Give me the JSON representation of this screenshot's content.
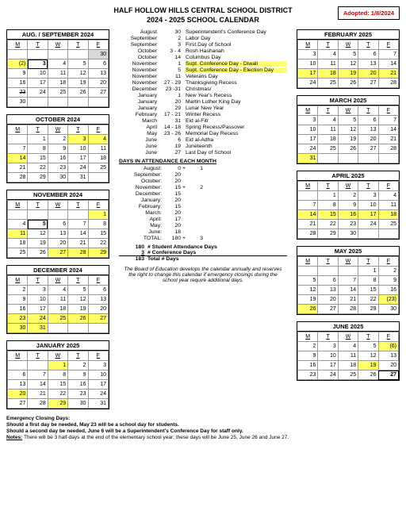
{
  "header": {
    "line1": "HALF HOLLOW HILLS CENTRAL SCHOOL DISTRICT",
    "line2": "2024 - 2025 SCHOOL CALENDAR",
    "adopted": "Adopted:  1/8/2024"
  },
  "dow": [
    "M",
    "T",
    "W",
    "T",
    "F"
  ],
  "calendars_left": [
    {
      "title": "AUG. / SEPTEMBER 2024",
      "rows": [
        [
          null,
          null,
          null,
          null,
          {
            "v": "30",
            "c": "sh"
          }
        ],
        [
          {
            "v": "(2)",
            "c": "hl"
          },
          {
            "v": "3",
            "c": "boxed"
          },
          {
            "v": "4"
          },
          {
            "v": "5"
          },
          {
            "v": "6"
          }
        ],
        [
          {
            "v": "9"
          },
          {
            "v": "10"
          },
          {
            "v": "11"
          },
          {
            "v": "12"
          },
          {
            "v": "13"
          }
        ],
        [
          {
            "v": "16"
          },
          {
            "v": "17"
          },
          {
            "v": "18"
          },
          {
            "v": "19"
          },
          {
            "v": "20"
          }
        ],
        [
          {
            "v": "23",
            "c": "strike"
          },
          {
            "v": "24"
          },
          {
            "v": "25"
          },
          {
            "v": "26"
          },
          {
            "v": "27"
          }
        ],
        [
          {
            "v": "30"
          },
          null,
          null,
          null,
          null
        ]
      ]
    },
    {
      "title": "OCTOBER 2024",
      "rows": [
        [
          null,
          {
            "v": "1"
          },
          {
            "v": "2"
          },
          {
            "v": "3",
            "c": "hl"
          },
          {
            "v": "4",
            "c": "hl"
          }
        ],
        [
          {
            "v": "7"
          },
          {
            "v": "8"
          },
          {
            "v": "9"
          },
          {
            "v": "10"
          },
          {
            "v": "11"
          }
        ],
        [
          {
            "v": "14",
            "c": "hl"
          },
          {
            "v": "15"
          },
          {
            "v": "16"
          },
          {
            "v": "17"
          },
          {
            "v": "18"
          }
        ],
        [
          {
            "v": "21"
          },
          {
            "v": "22"
          },
          {
            "v": "23"
          },
          {
            "v": "24"
          },
          {
            "v": "25"
          }
        ],
        [
          {
            "v": "28"
          },
          {
            "v": "29"
          },
          {
            "v": "30"
          },
          {
            "v": "31"
          },
          null
        ]
      ]
    },
    {
      "title": "NOVEMBER 2024",
      "rows": [
        [
          null,
          null,
          null,
          null,
          {
            "v": "1",
            "c": "hl"
          }
        ],
        [
          {
            "v": "4"
          },
          {
            "v": "5",
            "c": "boxed"
          },
          {
            "v": "6"
          },
          {
            "v": "7"
          },
          {
            "v": "8"
          }
        ],
        [
          {
            "v": "11",
            "c": "hl"
          },
          {
            "v": "12"
          },
          {
            "v": "13"
          },
          {
            "v": "14"
          },
          {
            "v": "15"
          }
        ],
        [
          {
            "v": "18"
          },
          {
            "v": "19"
          },
          {
            "v": "20"
          },
          {
            "v": "21"
          },
          {
            "v": "22"
          }
        ],
        [
          {
            "v": "25"
          },
          {
            "v": "26"
          },
          {
            "v": "27",
            "c": "hl"
          },
          {
            "v": "28",
            "c": "hl"
          },
          {
            "v": "29",
            "c": "hl"
          }
        ]
      ]
    },
    {
      "title": "DECEMBER 2024",
      "rows": [
        [
          {
            "v": "2"
          },
          {
            "v": "3"
          },
          {
            "v": "4"
          },
          {
            "v": "5"
          },
          {
            "v": "6"
          }
        ],
        [
          {
            "v": "9"
          },
          {
            "v": "10"
          },
          {
            "v": "11"
          },
          {
            "v": "12"
          },
          {
            "v": "13"
          }
        ],
        [
          {
            "v": "16"
          },
          {
            "v": "17"
          },
          {
            "v": "18"
          },
          {
            "v": "19"
          },
          {
            "v": "20"
          }
        ],
        [
          {
            "v": "23",
            "c": "hl"
          },
          {
            "v": "24",
            "c": "hl"
          },
          {
            "v": "25",
            "c": "hl"
          },
          {
            "v": "26",
            "c": "hl"
          },
          {
            "v": "27",
            "c": "hl"
          }
        ],
        [
          {
            "v": "30",
            "c": "hl"
          },
          {
            "v": "31",
            "c": "hl"
          },
          null,
          null,
          null
        ]
      ]
    },
    {
      "title": "JANUARY 2025",
      "rows": [
        [
          null,
          null,
          {
            "v": "1",
            "c": "hl"
          },
          {
            "v": "2"
          },
          {
            "v": "3"
          }
        ],
        [
          {
            "v": "6"
          },
          {
            "v": "7"
          },
          {
            "v": "8"
          },
          {
            "v": "9"
          },
          {
            "v": "10"
          }
        ],
        [
          {
            "v": "13"
          },
          {
            "v": "14"
          },
          {
            "v": "15"
          },
          {
            "v": "16"
          },
          {
            "v": "17"
          }
        ],
        [
          {
            "v": "20",
            "c": "hl"
          },
          {
            "v": "21"
          },
          {
            "v": "22"
          },
          {
            "v": "23"
          },
          {
            "v": "24"
          }
        ],
        [
          {
            "v": "27"
          },
          {
            "v": "28"
          },
          {
            "v": "29",
            "c": "hl"
          },
          {
            "v": "30"
          },
          {
            "v": "31"
          }
        ]
      ]
    }
  ],
  "calendars_right": [
    {
      "title": "FEBRUARY 2025",
      "rows": [
        [
          {
            "v": "3"
          },
          {
            "v": "4"
          },
          {
            "v": "5"
          },
          {
            "v": "6"
          },
          {
            "v": "7"
          }
        ],
        [
          {
            "v": "10"
          },
          {
            "v": "11"
          },
          {
            "v": "12"
          },
          {
            "v": "13"
          },
          {
            "v": "14"
          }
        ],
        [
          {
            "v": "17",
            "c": "hl"
          },
          {
            "v": "18",
            "c": "hl"
          },
          {
            "v": "19",
            "c": "hl"
          },
          {
            "v": "20",
            "c": "hl"
          },
          {
            "v": "21",
            "c": "hl"
          }
        ],
        [
          {
            "v": "24"
          },
          {
            "v": "25"
          },
          {
            "v": "26"
          },
          {
            "v": "27"
          },
          {
            "v": "28"
          }
        ]
      ]
    },
    {
      "title": "MARCH 2025",
      "rows": [
        [
          {
            "v": "3"
          },
          {
            "v": "4"
          },
          {
            "v": "5"
          },
          {
            "v": "6"
          },
          {
            "v": "7"
          }
        ],
        [
          {
            "v": "10"
          },
          {
            "v": "11"
          },
          {
            "v": "12"
          },
          {
            "v": "13"
          },
          {
            "v": "14"
          }
        ],
        [
          {
            "v": "17"
          },
          {
            "v": "18"
          },
          {
            "v": "19"
          },
          {
            "v": "20"
          },
          {
            "v": "21"
          }
        ],
        [
          {
            "v": "24"
          },
          {
            "v": "25"
          },
          {
            "v": "26"
          },
          {
            "v": "27"
          },
          {
            "v": "28"
          }
        ],
        [
          {
            "v": "31",
            "c": "hl"
          },
          null,
          null,
          null,
          null
        ]
      ]
    },
    {
      "title": "APRIL 2025",
      "rows": [
        [
          null,
          {
            "v": "1"
          },
          {
            "v": "2"
          },
          {
            "v": "3"
          },
          {
            "v": "4"
          }
        ],
        [
          {
            "v": "7"
          },
          {
            "v": "8"
          },
          {
            "v": "9"
          },
          {
            "v": "10"
          },
          {
            "v": "11"
          }
        ],
        [
          {
            "v": "14",
            "c": "hl"
          },
          {
            "v": "15",
            "c": "hl"
          },
          {
            "v": "16",
            "c": "hl"
          },
          {
            "v": "17",
            "c": "hl"
          },
          {
            "v": "18",
            "c": "hl"
          }
        ],
        [
          {
            "v": "21"
          },
          {
            "v": "22"
          },
          {
            "v": "23"
          },
          {
            "v": "24"
          },
          {
            "v": "25"
          }
        ],
        [
          {
            "v": "28"
          },
          {
            "v": "29"
          },
          {
            "v": "30"
          },
          null,
          null
        ]
      ]
    },
    {
      "title": "MAY 2025",
      "rows": [
        [
          null,
          null,
          null,
          {
            "v": "1"
          },
          {
            "v": "2"
          }
        ],
        [
          {
            "v": "5"
          },
          {
            "v": "6"
          },
          {
            "v": "7"
          },
          {
            "v": "8"
          },
          {
            "v": "9"
          }
        ],
        [
          {
            "v": "12"
          },
          {
            "v": "13"
          },
          {
            "v": "14"
          },
          {
            "v": "15"
          },
          {
            "v": "16"
          }
        ],
        [
          {
            "v": "19"
          },
          {
            "v": "20"
          },
          {
            "v": "21"
          },
          {
            "v": "22"
          },
          {
            "v": "(23)",
            "c": "hl"
          }
        ],
        [
          {
            "v": "26",
            "c": "hl"
          },
          {
            "v": "27"
          },
          {
            "v": "28"
          },
          {
            "v": "29"
          },
          {
            "v": "30"
          }
        ]
      ]
    },
    {
      "title": "JUNE 2025",
      "rows": [
        [
          {
            "v": "2"
          },
          {
            "v": "3"
          },
          {
            "v": "4"
          },
          {
            "v": "5"
          },
          {
            "v": "(6)",
            "c": "hl"
          }
        ],
        [
          {
            "v": "9"
          },
          {
            "v": "10"
          },
          {
            "v": "11"
          },
          {
            "v": "12"
          },
          {
            "v": "13"
          }
        ],
        [
          {
            "v": "16"
          },
          {
            "v": "17"
          },
          {
            "v": "18"
          },
          {
            "v": "19",
            "c": "hl"
          },
          {
            "v": "20"
          }
        ],
        [
          {
            "v": "23"
          },
          {
            "v": "24"
          },
          {
            "v": "25"
          },
          {
            "v": "26"
          },
          {
            "v": "27",
            "c": "boxed"
          }
        ]
      ]
    }
  ],
  "events": [
    {
      "m": "August",
      "d": "30",
      "t": "Superintendent's Conference Day"
    },
    {
      "m": "September",
      "d": "2",
      "t": "Labor Day"
    },
    {
      "m": "September",
      "d": "3",
      "t": "First Day of School"
    },
    {
      "m": "October",
      "d": "3 - 4",
      "t": "Rosh Hashanah"
    },
    {
      "m": "October",
      "d": "14",
      "t": "Columbus Day"
    },
    {
      "m": "November",
      "d": "1",
      "t": "Supt. Conference Day - Diwali",
      "hl": true
    },
    {
      "m": "November",
      "d": "5",
      "t": "Supt. Conference Day - Election Day",
      "hl": true
    },
    {
      "m": "November",
      "d": "11",
      "t": "Veterans Day"
    },
    {
      "m": "November",
      "d": "27 - 29",
      "t": "Thanksgiving Recess"
    },
    {
      "m": "December",
      "d": "23 -31",
      "t": "Christmas/"
    },
    {
      "m": "January",
      "d": "1",
      "t": "New Year's Recess"
    },
    {
      "m": "January",
      "d": "20",
      "t": "Martin Luther King Day"
    },
    {
      "m": "January",
      "d": "29",
      "t": "Lunar New Year"
    },
    {
      "m": "February",
      "d": "17 - 21",
      "t": "Winter Recess"
    },
    {
      "m": "March",
      "d": "31",
      "t": "Eid al-Fitr"
    },
    {
      "m": "April",
      "d": "14 - 18",
      "t": "Spring Recess/Passover"
    },
    {
      "m": "May",
      "d": "23 - 26",
      "t": "Memorial Day Recess"
    },
    {
      "m": "June",
      "d": "6",
      "t": "Eid al-Adha"
    },
    {
      "m": "June",
      "d": "19",
      "t": "Juneteenth"
    },
    {
      "m": "June",
      "d": "27",
      "t": "Last Day of School"
    }
  ],
  "att_title": "DAYS IN ATTENDANCE EACH MONTH",
  "attendance": [
    {
      "m": "August:",
      "v": "0",
      "p": "+",
      "e": "1"
    },
    {
      "m": "September:",
      "v": "20"
    },
    {
      "m": "October:",
      "v": "20"
    },
    {
      "m": "November:",
      "v": "15",
      "p": "+",
      "e": "2"
    },
    {
      "m": "December:",
      "v": "15"
    },
    {
      "m": "January:",
      "v": "20"
    },
    {
      "m": "February:",
      "v": "15"
    },
    {
      "m": "March:",
      "v": "20"
    },
    {
      "m": "April:",
      "v": "17"
    },
    {
      "m": "May:",
      "v": "20"
    },
    {
      "m": "June:",
      "v": "18"
    },
    {
      "m": "TOTAL:",
      "v": "180",
      "p": "+",
      "e": "3"
    }
  ],
  "summary": [
    {
      "n": "180",
      "t": "# Student Attendance Days"
    },
    {
      "n": "3",
      "t": "# Conference Days",
      "ul": true
    },
    {
      "n": "183",
      "t": "Total # Days",
      "bt": true
    }
  ],
  "disclaimer": "The Board of Education develops the calendar annually and reserves the right to change this calendar if emergency closings during the school year require additional days.",
  "footer": {
    "h": "Emergency Closing Days:",
    "l1": "Should a first day be needed, May 23 will be a school day for students.",
    "l2": "Should a second day be needed, June 6 will be a Superintendent's Conference Day for staff only.",
    "note_label": "Notes:",
    "note": "There will be 3 half-days at the end of the elementary school year; these days will be June 25, June 26 and June 27."
  }
}
